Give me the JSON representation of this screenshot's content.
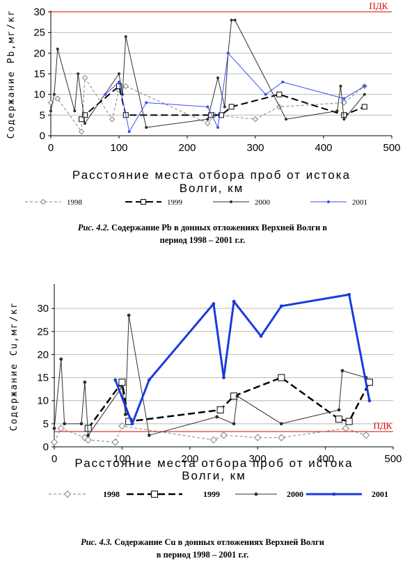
{
  "charts": [
    {
      "ylabel": "Содержание Pb,мг/кг",
      "xlabel_line1": "Расстояние места отбора проб от истока",
      "xlabel_line2": "Волги, км",
      "pdk_label": "ПДК",
      "caption_fig": "Рис. 4.2.",
      "caption_text": " Содержание Pb в донных отложениях Верхней Волги в",
      "caption_line2": "период 1998 – 2001 г.г."
    },
    {
      "ylabel": "Содержание Cu,мг/кг",
      "xlabel_line1": "Расстояние места отбора проб от истока",
      "xlabel_line2": "Волги, км",
      "pdk_label": "ПДК",
      "caption_fig": "Рис. 4.3.",
      "caption_text": " Содержание Cu в донных отложениях Верхней Волги",
      "caption_line2": "в период 1998 – 2001 г.г."
    }
  ],
  "chart_data": [
    {
      "type": "line",
      "ylabel": "Содержание Pb,мг/кг",
      "xlabel": "Расстояние места отбора проб от истока Волги, км",
      "xlim": [
        0,
        500
      ],
      "ylim": [
        0,
        30
      ],
      "xticks": [
        0,
        100,
        200,
        300,
        400,
        500
      ],
      "yticks": [
        0,
        5,
        10,
        15,
        20,
        25,
        30
      ],
      "pdk": 30,
      "pdk_label": "ПДК",
      "legend_position": "bottom",
      "series": [
        {
          "name": "1998",
          "color": "#808080",
          "dash": "4,3",
          "marker": "diamond",
          "width": 1,
          "x": [
            0,
            10,
            45,
            50,
            90,
            100,
            110,
            230,
            240,
            300,
            335,
            430,
            460
          ],
          "y": [
            8,
            9,
            1,
            14,
            4,
            11,
            12,
            3,
            5,
            4,
            7,
            8,
            12
          ]
        },
        {
          "name": "1999",
          "color": "#000000",
          "dash": "10,5",
          "marker": "square",
          "width": 2,
          "x": [
            45,
            50,
            100,
            110,
            235,
            250,
            265,
            335,
            430,
            460
          ],
          "y": [
            4,
            5,
            12,
            5,
            5,
            5,
            7,
            10,
            5,
            7
          ]
        },
        {
          "name": "2000",
          "color": "#303030",
          "dash": "",
          "marker": "dot",
          "width": 1,
          "x": [
            0,
            5,
            10,
            35,
            40,
            50,
            100,
            105,
            110,
            140,
            230,
            245,
            255,
            260,
            265,
            270,
            345,
            420,
            425,
            430,
            460
          ],
          "y": [
            6,
            10,
            21,
            6,
            15,
            3,
            15,
            10,
            24,
            2,
            4,
            14,
            7,
            20,
            28,
            28,
            4,
            6,
            12,
            4,
            10
          ]
        },
        {
          "name": "2001",
          "color": "#3a4ff0",
          "dash": "",
          "marker": "dot",
          "width": 1,
          "x": [
            80,
            100,
            115,
            140,
            230,
            245,
            260,
            315,
            340,
            430,
            460
          ],
          "y": [
            10,
            13,
            1,
            8,
            7,
            2,
            20,
            10,
            13,
            9,
            12
          ]
        }
      ]
    },
    {
      "type": "line",
      "ylabel": "Содержание Cu,мг/кг",
      "xlabel": "Расстояние места отбора проб от истока Волги, км",
      "xlim": [
        0,
        500
      ],
      "ylim": [
        0,
        35
      ],
      "xticks": [
        0,
        100,
        200,
        300,
        400,
        500
      ],
      "yticks": [
        0,
        5,
        10,
        15,
        20,
        25,
        30
      ],
      "pdk": 3.3,
      "pdk_label": "ПДК",
      "legend_position": "bottom",
      "series": [
        {
          "name": "1998",
          "color": "#808080",
          "dash": "4,3",
          "marker": "diamond",
          "width": 1,
          "x": [
            0,
            10,
            45,
            50,
            90,
            100,
            235,
            250,
            300,
            335,
            430,
            460
          ],
          "y": [
            1,
            4,
            2,
            1.5,
            1,
            4.5,
            1.5,
            2.5,
            2,
            2,
            4,
            2.5
          ]
        },
        {
          "name": "1999",
          "color": "#000000",
          "dash": "10,5",
          "marker": "square",
          "width": 2.5,
          "x": [
            50,
            100,
            110,
            245,
            265,
            335,
            420,
            435,
            465
          ],
          "y": [
            4,
            14,
            5.5,
            8,
            11,
            15,
            6,
            5.5,
            14
          ]
        },
        {
          "name": "2000",
          "color": "#303030",
          "dash": "",
          "marker": "dot",
          "width": 1,
          "x": [
            0,
            10,
            15,
            40,
            45,
            50,
            100,
            105,
            110,
            140,
            240,
            265,
            270,
            335,
            420,
            425,
            460
          ],
          "y": [
            4,
            19,
            5,
            5,
            14,
            2.5,
            13,
            7,
            28.5,
            2.5,
            6.5,
            5,
            11,
            5,
            8,
            16.5,
            15
          ]
        },
        {
          "name": "2001",
          "color": "#1a3adf",
          "dash": "",
          "marker": "dot",
          "width": 3,
          "x": [
            90,
            115,
            140,
            235,
            250,
            265,
            305,
            335,
            435,
            465
          ],
          "y": [
            14.5,
            5,
            14.5,
            31,
            15,
            31.5,
            24,
            30.5,
            33,
            10
          ]
        }
      ]
    }
  ]
}
